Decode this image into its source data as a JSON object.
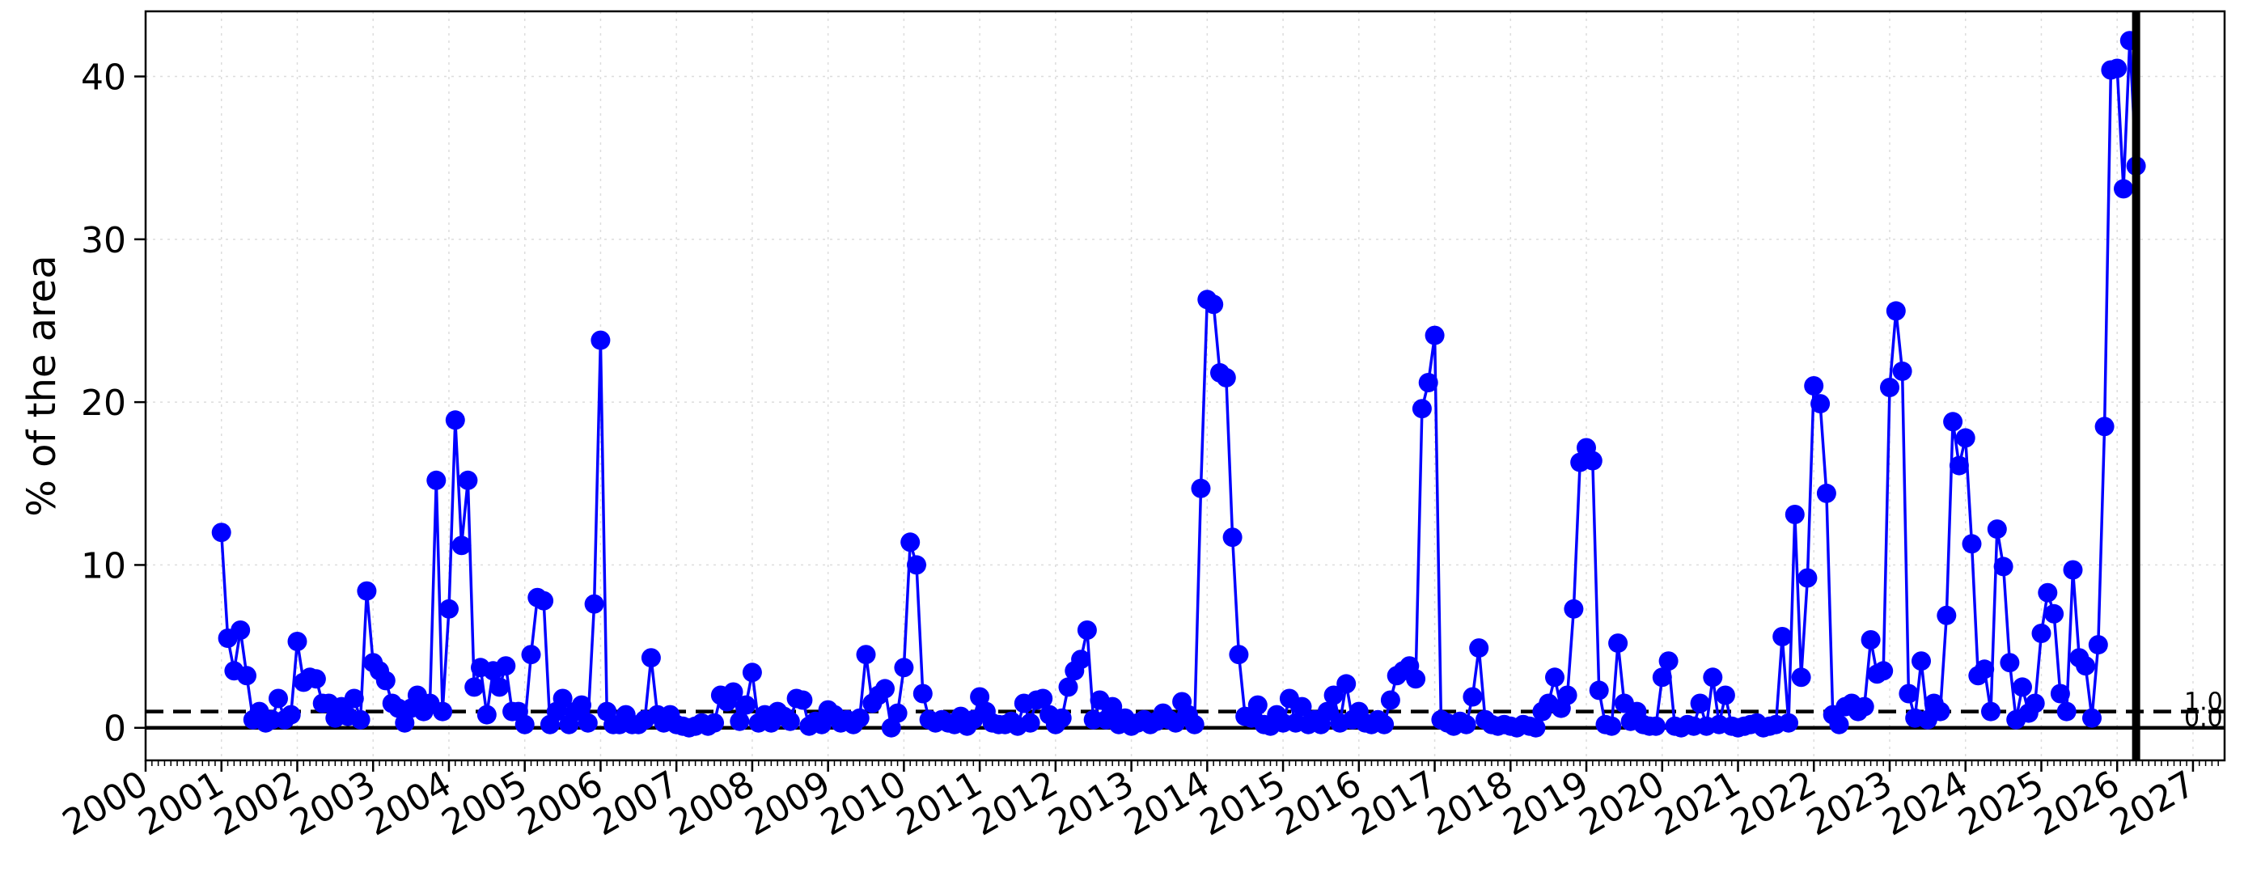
{
  "chart_data": {
    "type": "line",
    "title": "",
    "xlabel": "",
    "ylabel": "% of the area",
    "xlim": [
      "2000-01-01",
      "2027-06-01"
    ],
    "ylim": [
      -2,
      44
    ],
    "y_ticks": [
      0,
      10,
      20,
      30,
      40
    ],
    "x_tick_labels": [
      "2000",
      "2001",
      "2002",
      "2003",
      "2004",
      "2005",
      "2006",
      "2007",
      "2008",
      "2009",
      "2010",
      "2011",
      "2012",
      "2013",
      "2014",
      "2015",
      "2016",
      "2017",
      "2018",
      "2019",
      "2020",
      "2021",
      "2022",
      "2023",
      "2024",
      "2025",
      "2026",
      "2027"
    ],
    "grid": true,
    "series_color": "#0000ff",
    "reference_lines": [
      {
        "y": 1.0,
        "style": "dashed",
        "label": "1.0"
      },
      {
        "y": 0.0,
        "style": "solid",
        "label": "0.0"
      }
    ],
    "vertical_marker": {
      "x": "2026-04-01",
      "style": "solid-thick"
    },
    "series": [
      {
        "x": [
          "2001-01",
          "2001-02",
          "2001-03",
          "2001-04",
          "2001-05",
          "2001-06",
          "2001-07",
          "2001-08",
          "2001-09",
          "2001-10",
          "2001-11",
          "2001-12",
          "2002-01",
          "2002-02",
          "2002-03",
          "2002-04",
          "2002-05",
          "2002-06",
          "2002-07",
          "2002-08",
          "2002-09",
          "2002-10",
          "2002-11",
          "2002-12",
          "2003-01",
          "2003-02",
          "2003-03",
          "2003-04",
          "2003-05",
          "2003-06",
          "2003-07",
          "2003-08",
          "2003-09",
          "2003-10",
          "2003-11",
          "2003-12",
          "2004-01",
          "2004-02",
          "2004-03",
          "2004-04",
          "2004-05",
          "2004-06",
          "2004-07",
          "2004-08",
          "2004-09",
          "2004-10",
          "2004-11",
          "2004-12",
          "2005-01",
          "2005-02",
          "2005-03",
          "2005-04",
          "2005-05",
          "2005-06",
          "2005-07",
          "2005-08",
          "2005-09",
          "2005-10",
          "2005-11",
          "2005-12",
          "2006-01",
          "2006-02",
          "2006-03",
          "2006-04",
          "2006-05",
          "2006-06",
          "2006-07",
          "2006-08",
          "2006-09",
          "2006-10",
          "2006-11",
          "2006-12",
          "2007-01",
          "2007-02",
          "2007-03",
          "2007-04",
          "2007-05",
          "2007-06",
          "2007-07",
          "2007-08",
          "2007-09",
          "2007-10",
          "2007-11",
          "2007-12",
          "2008-01",
          "2008-02",
          "2008-03",
          "2008-04",
          "2008-05",
          "2008-06",
          "2008-07",
          "2008-08",
          "2008-09",
          "2008-10",
          "2008-11",
          "2008-12",
          "2009-01",
          "2009-02",
          "2009-03",
          "2009-04",
          "2009-05",
          "2009-06",
          "2009-07",
          "2009-08",
          "2009-09",
          "2009-10",
          "2009-11",
          "2009-12",
          "2010-01",
          "2010-02",
          "2010-03",
          "2010-04",
          "2010-05",
          "2010-06",
          "2010-07",
          "2010-08",
          "2010-09",
          "2010-10",
          "2010-11",
          "2010-12",
          "2011-01",
          "2011-02",
          "2011-03",
          "2011-04",
          "2011-05",
          "2011-06",
          "2011-07",
          "2011-08",
          "2011-09",
          "2011-10",
          "2011-11",
          "2011-12",
          "2012-01",
          "2012-02",
          "2012-03",
          "2012-04",
          "2012-05",
          "2012-06",
          "2012-07",
          "2012-08",
          "2012-09",
          "2012-10",
          "2012-11",
          "2012-12",
          "2013-01",
          "2013-02",
          "2013-03",
          "2013-04",
          "2013-05",
          "2013-06",
          "2013-07",
          "2013-08",
          "2013-09",
          "2013-10",
          "2013-11",
          "2013-12",
          "2014-01",
          "2014-02",
          "2014-03",
          "2014-04",
          "2014-05",
          "2014-06",
          "2014-07",
          "2014-08",
          "2014-09",
          "2014-10",
          "2014-11",
          "2014-12",
          "2015-01",
          "2015-02",
          "2015-03",
          "2015-04",
          "2015-05",
          "2015-06",
          "2015-07",
          "2015-08",
          "2015-09",
          "2015-10",
          "2015-11",
          "2015-12",
          "2016-01",
          "2016-02",
          "2016-03",
          "2016-04",
          "2016-05",
          "2016-06",
          "2016-07",
          "2016-08",
          "2016-09",
          "2016-10",
          "2016-11",
          "2016-12",
          "2017-01",
          "2017-02",
          "2017-03",
          "2017-04",
          "2017-05",
          "2017-06",
          "2017-07",
          "2017-08",
          "2017-09",
          "2017-10",
          "2017-11",
          "2017-12",
          "2018-01",
          "2018-02",
          "2018-03",
          "2018-04",
          "2018-05",
          "2018-06",
          "2018-07",
          "2018-08",
          "2018-09",
          "2018-10",
          "2018-11",
          "2018-12",
          "2019-01",
          "2019-02",
          "2019-03",
          "2019-04",
          "2019-05",
          "2019-06",
          "2019-07",
          "2019-08",
          "2019-09",
          "2019-10",
          "2019-11",
          "2019-12",
          "2020-01",
          "2020-02",
          "2020-03",
          "2020-04",
          "2020-05",
          "2020-06",
          "2020-07",
          "2020-08",
          "2020-09",
          "2020-10",
          "2020-11",
          "2020-12",
          "2021-01",
          "2021-02",
          "2021-03",
          "2021-04",
          "2021-05",
          "2021-06",
          "2021-07",
          "2021-08",
          "2021-09",
          "2021-10",
          "2021-11",
          "2021-12",
          "2022-01",
          "2022-02",
          "2022-03",
          "2022-04",
          "2022-05",
          "2022-06",
          "2022-07",
          "2022-08",
          "2022-09",
          "2022-10",
          "2022-11",
          "2022-12",
          "2023-01",
          "2023-02",
          "2023-03",
          "2023-04",
          "2023-05",
          "2023-06",
          "2023-07",
          "2023-08",
          "2023-09",
          "2023-10",
          "2023-11",
          "2023-12",
          "2024-01",
          "2024-02",
          "2024-03",
          "2024-04",
          "2024-05",
          "2024-06",
          "2024-07",
          "2024-08",
          "2024-09",
          "2024-10",
          "2024-11",
          "2024-12",
          "2025-01",
          "2025-02",
          "2025-03",
          "2025-04",
          "2025-05",
          "2025-06",
          "2025-07",
          "2025-08",
          "2025-09",
          "2025-10",
          "2025-11",
          "2025-12",
          "2026-01",
          "2026-02",
          "2026-03",
          "2026-04"
        ],
        "values": [
          12.0,
          5.5,
          3.5,
          6.0,
          3.2,
          0.5,
          1.0,
          0.3,
          0.5,
          1.8,
          0.5,
          0.8,
          5.3,
          2.8,
          3.1,
          3.0,
          1.5,
          1.5,
          0.6,
          1.3,
          0.7,
          1.8,
          0.5,
          8.4,
          4.0,
          3.5,
          2.9,
          1.5,
          1.2,
          0.3,
          1.2,
          2.0,
          1.0,
          1.5,
          15.2,
          1.0,
          7.3,
          18.9,
          11.2,
          15.2,
          2.5,
          3.7,
          0.8,
          3.5,
          2.5,
          3.8,
          1.0,
          1.0,
          0.2,
          4.5,
          8.0,
          7.8,
          0.2,
          1.0,
          1.8,
          0.2,
          1.0,
          1.4,
          0.3,
          7.6,
          23.8,
          1.0,
          0.2,
          0.2,
          0.8,
          0.2,
          0.2,
          0.5,
          4.3,
          0.8,
          0.3,
          0.8,
          0.2,
          0.1,
          0.0,
          0.1,
          0.3,
          0.1,
          0.3,
          2.0,
          1.6,
          2.2,
          0.4,
          1.4,
          3.4,
          0.3,
          0.8,
          0.3,
          1.0,
          0.7,
          0.4,
          1.8,
          1.7,
          0.1,
          0.4,
          0.2,
          1.1,
          0.8,
          0.3,
          0.5,
          0.2,
          0.6,
          4.5,
          1.5,
          2.0,
          2.4,
          0.0,
          0.9,
          3.7,
          11.4,
          10.0,
          2.1,
          0.5,
          0.3,
          0.5,
          0.3,
          0.2,
          0.7,
          0.1,
          0.5,
          1.9,
          1.0,
          0.3,
          0.2,
          0.2,
          0.4,
          0.1,
          1.5,
          0.3,
          1.7,
          1.8,
          0.8,
          0.2,
          0.6,
          2.5,
          3.5,
          4.2,
          6.0,
          0.5,
          1.7,
          0.5,
          1.3,
          0.2,
          0.6,
          0.1,
          0.3,
          0.5,
          0.2,
          0.4,
          0.9,
          0.5,
          0.3,
          1.6,
          0.8,
          0.2,
          14.7,
          26.3,
          26.0,
          21.8,
          21.5,
          11.7,
          4.5,
          0.7,
          0.6,
          1.4,
          0.2,
          0.1,
          0.8,
          0.3,
          1.8,
          0.3,
          1.3,
          0.2,
          0.5,
          0.2,
          1.0,
          2.0,
          0.3,
          2.7,
          0.5,
          1.0,
          0.3,
          0.2,
          0.5,
          0.2,
          1.7,
          3.2,
          3.5,
          3.8,
          3.0,
          19.6,
          21.2,
          24.1,
          0.5,
          0.3,
          0.1,
          0.4,
          0.2,
          1.9,
          4.9,
          0.5,
          0.2,
          0.1,
          0.2,
          0.1,
          0.0,
          0.2,
          0.1,
          0.0,
          1.0,
          1.5,
          3.1,
          1.2,
          2.0,
          7.3,
          16.3,
          17.2,
          16.4,
          2.3,
          0.2,
          0.1,
          5.2,
          1.5,
          0.4,
          1.0,
          0.2,
          0.1,
          0.1,
          3.1,
          4.1,
          0.1,
          0.0,
          0.2,
          0.1,
          1.5,
          0.1,
          3.1,
          0.2,
          2.0,
          0.1,
          0.0,
          0.1,
          0.2,
          0.3,
          0.0,
          0.1,
          0.2,
          5.6,
          0.3,
          13.1,
          3.1,
          9.2,
          21.0,
          19.9,
          14.4,
          0.8,
          0.2,
          1.3,
          1.5,
          1.0,
          1.3,
          5.4,
          3.3,
          3.5,
          20.9,
          25.6,
          21.9,
          2.1,
          0.6,
          4.1,
          0.5,
          1.5,
          1.0,
          6.9,
          18.8,
          16.1,
          17.8,
          11.3,
          3.2,
          3.6,
          1.0,
          12.2,
          9.9,
          4.0,
          0.5,
          2.5,
          0.9,
          1.5,
          5.8,
          8.3,
          7.0,
          2.1,
          1.0,
          9.7,
          4.3,
          3.8,
          0.6,
          5.1,
          18.5,
          40.4,
          40.5,
          33.1,
          42.2,
          34.5
        ]
      }
    ]
  }
}
